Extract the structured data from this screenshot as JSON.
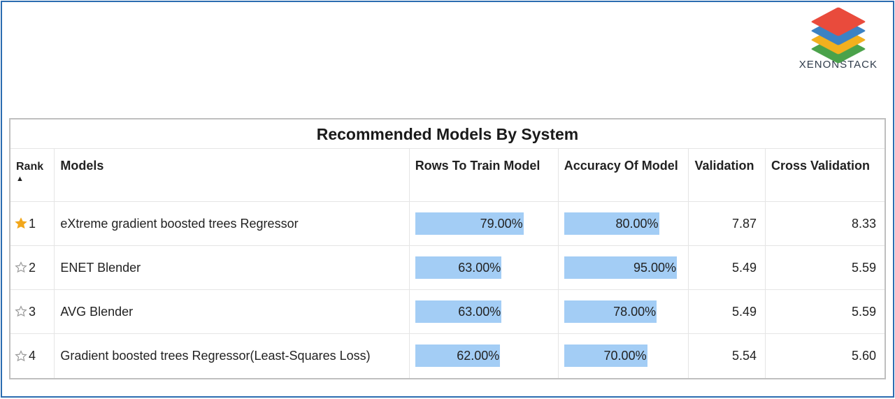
{
  "brand": {
    "label": "XENONSTACK"
  },
  "panel": {
    "title": "Recommended Models By System",
    "columns": {
      "rank": "Rank",
      "models": "Models",
      "train": "Rows To Train Model",
      "accuracy": "Accuracy Of Model",
      "validation": "Validation",
      "cross_validation": "Cross Validation"
    }
  },
  "style": {
    "bar_color": "#a3cdf5",
    "star_filled": "#f2a71b",
    "star_empty": "#9a9a9a",
    "text_color": "#222222",
    "border_color": "#bfbfbf",
    "grid_color": "#e5e5e5",
    "frame_border": "#2b6cb0",
    "train_bar_scale": 100,
    "accuracy_bar_scale": 100
  },
  "rows": [
    {
      "rank": "1",
      "starred": true,
      "name": "eXtreme gradient boosted trees Regressor",
      "train_pct": 79.0,
      "train_label": "79.00%",
      "accuracy_pct": 80.0,
      "accuracy_label": "80.00%",
      "validation": "7.87",
      "cross_validation": "8.33"
    },
    {
      "rank": "2",
      "starred": false,
      "name": "ENET Blender",
      "train_pct": 63.0,
      "train_label": "63.00%",
      "accuracy_pct": 95.0,
      "accuracy_label": "95.00%",
      "validation": "5.49",
      "cross_validation": "5.59"
    },
    {
      "rank": "3",
      "starred": false,
      "name": "AVG Blender",
      "train_pct": 63.0,
      "train_label": "63.00%",
      "accuracy_pct": 78.0,
      "accuracy_label": "78.00%",
      "validation": "5.49",
      "cross_validation": "5.59"
    },
    {
      "rank": "4",
      "starred": false,
      "name": "Gradient boosted trees Regressor(Least-Squares Loss)",
      "train_pct": 62.0,
      "train_label": "62.00%",
      "accuracy_pct": 70.0,
      "accuracy_label": "70.00%",
      "validation": "5.54",
      "cross_validation": "5.60"
    }
  ]
}
